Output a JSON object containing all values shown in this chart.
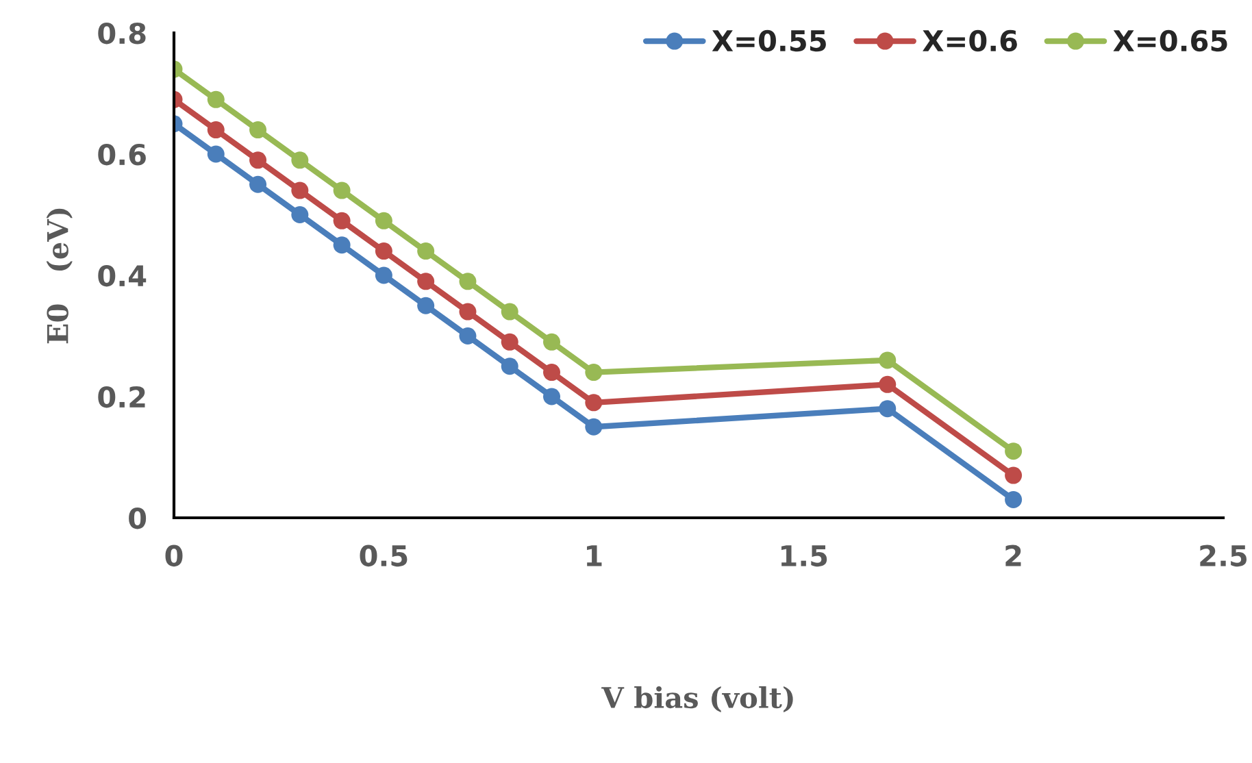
{
  "chart_data": {
    "type": "line",
    "xlabel": "V bias (volt)",
    "ylabel": "E0   (eV)",
    "x": [
      0,
      0.1,
      0.2,
      0.3,
      0.4,
      0.5,
      0.6,
      0.7,
      0.8,
      0.9,
      1,
      1.7,
      2
    ],
    "series": [
      {
        "name": "X=0.55",
        "color": "#4a7ebb",
        "values": [
          0.65,
          0.6,
          0.55,
          0.5,
          0.45,
          0.4,
          0.35,
          0.3,
          0.25,
          0.2,
          0.15,
          0.18,
          0.03
        ]
      },
      {
        "name": "X=0.6",
        "color": "#be4b48",
        "values": [
          0.69,
          0.64,
          0.59,
          0.54,
          0.49,
          0.44,
          0.39,
          0.34,
          0.29,
          0.24,
          0.19,
          0.22,
          0.07
        ]
      },
      {
        "name": "X=0.65",
        "color": "#98b954",
        "values": [
          0.74,
          0.69,
          0.64,
          0.59,
          0.54,
          0.49,
          0.44,
          0.39,
          0.34,
          0.29,
          0.24,
          0.26,
          0.11
        ]
      }
    ],
    "xlim": [
      0,
      2.5
    ],
    "xticks": [
      0,
      0.5,
      1,
      1.5,
      2,
      2.5
    ],
    "ylim": [
      0,
      0.8
    ],
    "yticks": [
      0,
      0.2,
      0.4,
      0.6,
      0.8
    ],
    "grid": false,
    "legend": "top right",
    "marker": "circle",
    "line_style": "solid"
  }
}
